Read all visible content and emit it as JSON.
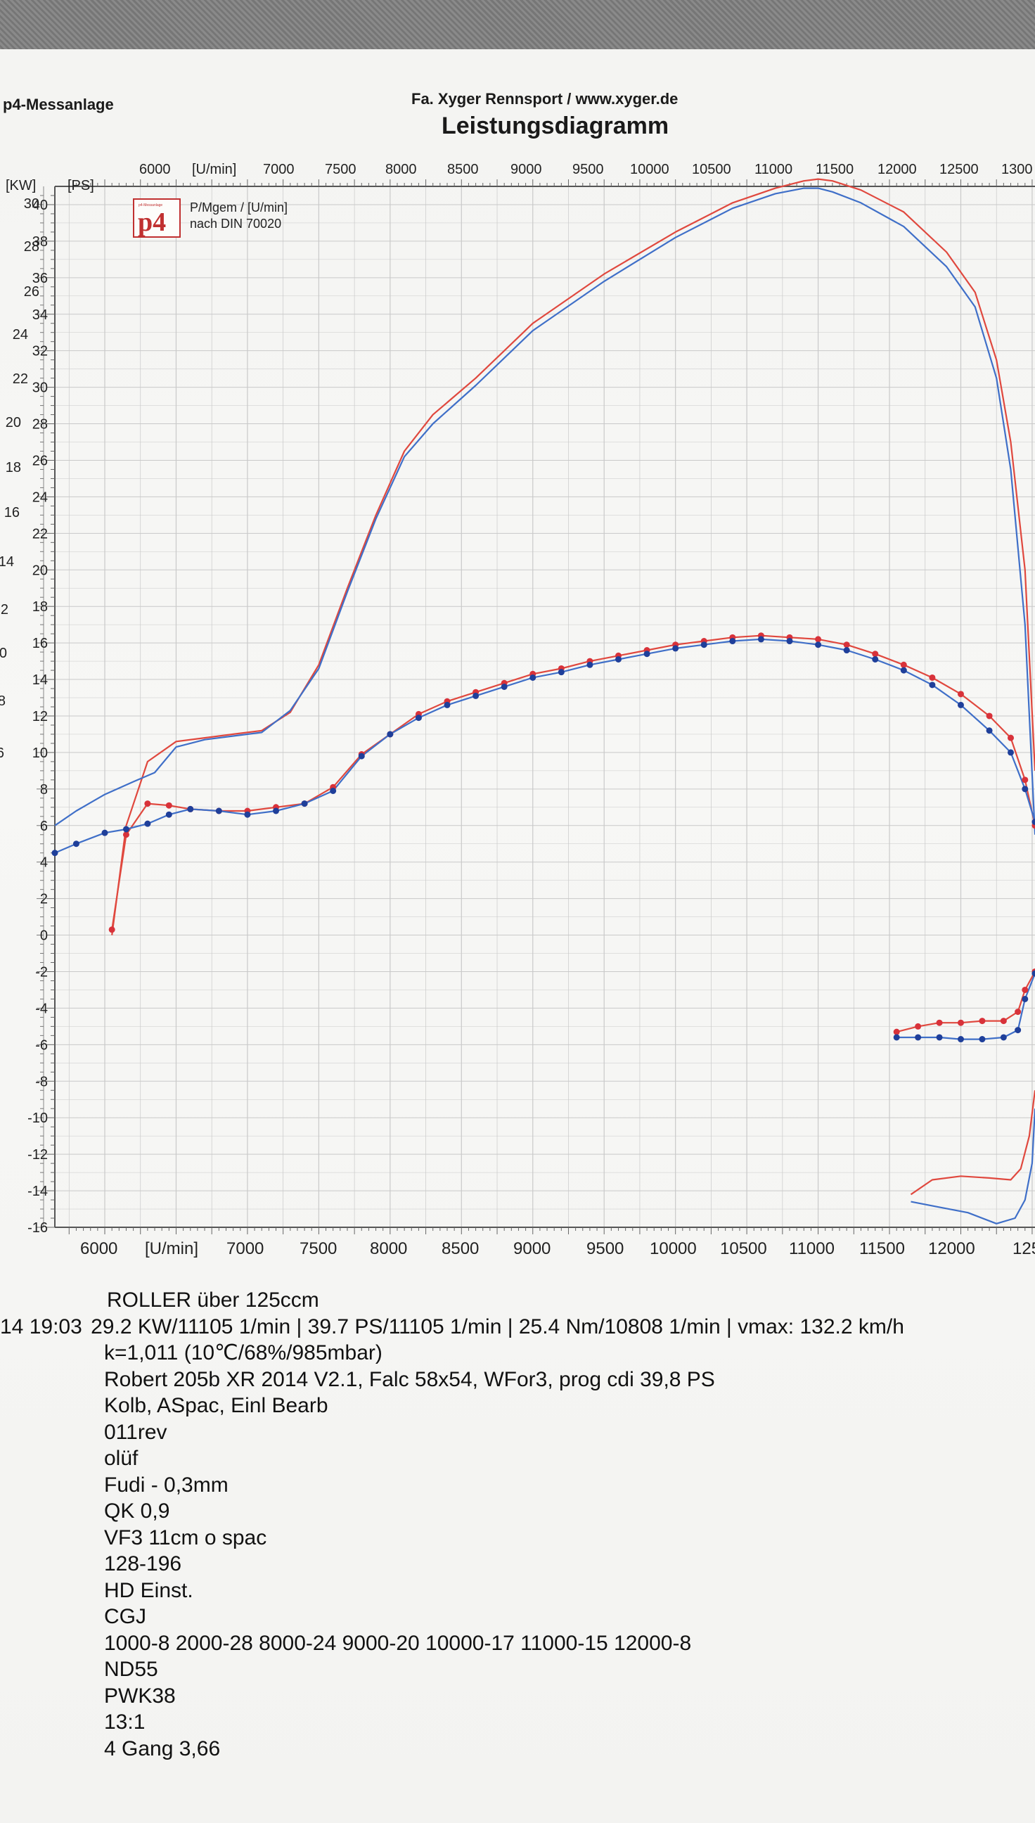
{
  "header": {
    "left": "p4-Messanlage",
    "company": "Fa. Xyger Rennsport  / www.xyger.de",
    "title": "Leistungsdiagramm"
  },
  "logo": {
    "mark": "p4",
    "small_text": "p4-Messanlage"
  },
  "legend": {
    "line1": "P/Mgem / [U/min]",
    "line2": "nach DIN 70020"
  },
  "axis": {
    "rpm_unit": "[U/min]",
    "kw_unit": "[KW]",
    "ps_unit": "[PS]",
    "top_ticks": [
      "6000",
      "7000",
      "7500",
      "8000",
      "8500",
      "9000",
      "9500",
      "10000",
      "10500",
      "11000",
      "11500",
      "12000",
      "12500",
      "1300"
    ],
    "bottom_ticks": [
      "6000",
      "7000",
      "7500",
      "8000",
      "8500",
      "9000",
      "9500",
      "10000",
      "10500",
      "11000",
      "11500",
      "12000",
      "125"
    ],
    "kw_ticks": [
      "30",
      "28",
      "26",
      "24",
      "22",
      "20",
      "18",
      "16",
      "14",
      "2",
      "0",
      "8",
      "6"
    ],
    "ps_ticks": [
      "40",
      "38",
      "36",
      "34",
      "32",
      "30",
      "28",
      "26",
      "24",
      "22",
      "20",
      "18",
      "16",
      "14",
      "12",
      "10",
      "8",
      "6",
      "4",
      "2",
      "0",
      "-2",
      "-4",
      "-6",
      "-8",
      "-10",
      "-12",
      "-14",
      "-16"
    ]
  },
  "colors": {
    "run_red": "#e0483e",
    "run_blue": "#3f6fc8",
    "grid": "#c9c9c9",
    "marker_blue": "#1f3f9a",
    "marker_red": "#d8323a"
  },
  "chart_data": {
    "type": "line",
    "title": "Leistungsdiagramm",
    "xlabel": "[U/min]",
    "ylabel": "[PS]",
    "xlim": [
      5650,
      12520
    ],
    "ylim": [
      -16,
      41
    ],
    "grid": true,
    "series": [
      {
        "color": "#e0483e",
        "kind": "power",
        "x": [
          6050,
          6150,
          6300,
          6500,
          6700,
          6900,
          7100,
          7300,
          7500,
          7700,
          7900,
          8100,
          8300,
          8600,
          9000,
          9500,
          10000,
          10400,
          10700,
          10900,
          11000,
          11100,
          11300,
          11600,
          11900,
          12100,
          12250,
          12350,
          12450,
          12520
        ],
        "y": [
          0,
          6,
          9.5,
          10.6,
          10.8,
          11.0,
          11.2,
          12.2,
          14.8,
          19.0,
          23.0,
          26.5,
          28.5,
          30.5,
          33.5,
          36.2,
          38.5,
          40.1,
          40.9,
          41.3,
          41.4,
          41.3,
          40.8,
          39.6,
          37.4,
          35.2,
          31.5,
          27.0,
          20.0,
          9.0
        ]
      },
      {
        "color": "#3f6fc8",
        "kind": "power",
        "x": [
          5650,
          5800,
          6000,
          6200,
          6350,
          6500,
          6700,
          6900,
          7100,
          7300,
          7500,
          7700,
          7900,
          8100,
          8300,
          8600,
          9000,
          9500,
          10000,
          10400,
          10700,
          10900,
          11000,
          11100,
          11300,
          11600,
          11900,
          12100,
          12250,
          12350,
          12450,
          12520
        ],
        "y": [
          6.0,
          6.8,
          7.7,
          8.4,
          8.9,
          10.3,
          10.7,
          10.9,
          11.1,
          12.3,
          14.6,
          18.8,
          22.8,
          26.2,
          28.0,
          30.1,
          33.1,
          35.8,
          38.2,
          39.8,
          40.6,
          40.9,
          40.9,
          40.7,
          40.1,
          38.8,
          36.6,
          34.4,
          30.5,
          25.5,
          17.0,
          5.5
        ]
      },
      {
        "color": "#e0483e",
        "kind": "torque",
        "markers": true,
        "x": [
          6050,
          6150,
          6300,
          6450,
          6600,
          6800,
          7000,
          7200,
          7400,
          7600,
          7800,
          8000,
          8200,
          8400,
          8600,
          8800,
          9000,
          9200,
          9400,
          9600,
          9800,
          10000,
          10200,
          10400,
          10600,
          10800,
          11000,
          11200,
          11400,
          11600,
          11800,
          12000,
          12200,
          12350,
          12450,
          12520
        ],
        "y": [
          0.3,
          5.5,
          7.2,
          7.1,
          6.9,
          6.8,
          6.8,
          7.0,
          7.2,
          8.1,
          9.9,
          11.0,
          12.1,
          12.8,
          13.3,
          13.8,
          14.3,
          14.6,
          15.0,
          15.3,
          15.6,
          15.9,
          16.1,
          16.3,
          16.4,
          16.3,
          16.2,
          15.9,
          15.4,
          14.8,
          14.1,
          13.2,
          12.0,
          10.8,
          8.5,
          6.0
        ]
      },
      {
        "color": "#3f6fc8",
        "kind": "torque",
        "markers": true,
        "x": [
          5650,
          5800,
          6000,
          6150,
          6300,
          6450,
          6600,
          6800,
          7000,
          7200,
          7400,
          7600,
          7800,
          8000,
          8200,
          8400,
          8600,
          8800,
          9000,
          9200,
          9400,
          9600,
          9800,
          10000,
          10200,
          10400,
          10600,
          10800,
          11000,
          11200,
          11400,
          11600,
          11800,
          12000,
          12200,
          12350,
          12450,
          12520
        ],
        "y": [
          4.5,
          5.0,
          5.6,
          5.8,
          6.1,
          6.6,
          6.9,
          6.8,
          6.6,
          6.8,
          7.2,
          7.9,
          9.8,
          11.0,
          11.9,
          12.6,
          13.1,
          13.6,
          14.1,
          14.4,
          14.8,
          15.1,
          15.4,
          15.7,
          15.9,
          16.1,
          16.2,
          16.1,
          15.9,
          15.6,
          15.1,
          14.5,
          13.7,
          12.6,
          11.2,
          10.0,
          8.0,
          6.2
        ]
      },
      {
        "color": "#e0483e",
        "kind": "negative",
        "markers": true,
        "x": [
          11550,
          11700,
          11850,
          12000,
          12150,
          12300,
          12400,
          12450,
          12520
        ],
        "y": [
          -5.3,
          -5.0,
          -4.8,
          -4.8,
          -4.7,
          -4.7,
          -4.2,
          -3.0,
          -2.0
        ]
      },
      {
        "color": "#3f6fc8",
        "kind": "negative",
        "markers": true,
        "x": [
          11550,
          11700,
          11850,
          12000,
          12150,
          12300,
          12400,
          12450,
          12520
        ],
        "y": [
          -5.6,
          -5.6,
          -5.6,
          -5.7,
          -5.7,
          -5.6,
          -5.2,
          -3.5,
          -2.1
        ]
      },
      {
        "color": "#e0483e",
        "kind": "negative",
        "x": [
          11650,
          11800,
          12000,
          12200,
          12350,
          12420,
          12480,
          12520
        ],
        "y": [
          -14.2,
          -13.4,
          -13.2,
          -13.3,
          -13.4,
          -12.8,
          -11.0,
          -8.5
        ]
      },
      {
        "color": "#3f6fc8",
        "kind": "negative",
        "x": [
          11650,
          11850,
          12050,
          12250,
          12380,
          12450,
          12500,
          12520
        ],
        "y": [
          -14.6,
          -14.9,
          -15.2,
          -15.8,
          -15.5,
          -14.5,
          -12.5,
          -9.5
        ]
      }
    ]
  },
  "notes": {
    "line1": "ROLLER über 125ccm",
    "line2_prefix": "14  19:03",
    "line2_rest": "29.2 KW/11105 1/min  |  39.7 PS/11105 1/min  |  25.4 Nm/10808 1/min | vmax: 132.2 km/h",
    "lines": [
      "k=1,011 (10℃/68%/985mbar)",
      "Robert 205b XR 2014  V2.1, Falc 58x54, WFor3, prog cdi 39,8 PS",
      "Kolb, ASpac, Einl Bearb",
      "011rev",
      "olüf",
      "Fudi - 0,3mm",
      "QK 0,9",
      "VF3 11cm o spac",
      "128-196",
      "HD Einst.",
      "CGJ",
      "1000-8 2000-28 8000-24 9000-20 10000-17 11000-15 12000-8",
      "ND55",
      "PWK38",
      "13:1",
      "4 Gang 3,66"
    ]
  }
}
